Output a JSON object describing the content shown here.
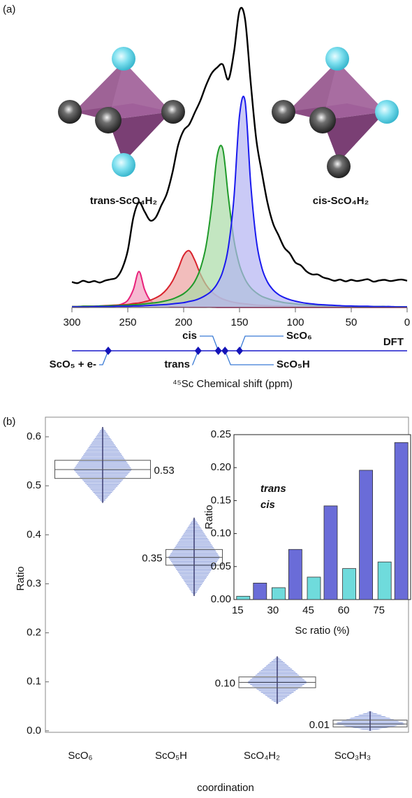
{
  "panel_labels": [
    "(a)",
    "(b)"
  ],
  "chart_data": [
    {
      "type": "line",
      "annotations": [
        "trans-ScO₄H₂",
        "cis-ScO₄H₂"
      ],
      "xlabel": "⁴⁵Sc Chemical shift (ppm)",
      "xlim": [
        300,
        0
      ],
      "xticks": [
        300,
        250,
        200,
        150,
        100,
        50,
        0
      ],
      "x": [
        300,
        295,
        290,
        285,
        280,
        275,
        270,
        265,
        260,
        255,
        250,
        245,
        240,
        235,
        230,
        225,
        220,
        215,
        210,
        205,
        200,
        195,
        190,
        185,
        180,
        175,
        170,
        165,
        160,
        155,
        150,
        145,
        140,
        135,
        130,
        125,
        120,
        115,
        110,
        105,
        100,
        95,
        90,
        85,
        80,
        75,
        70,
        65,
        60,
        55,
        50,
        45,
        40,
        35,
        30,
        25,
        20,
        15,
        10,
        5,
        0
      ],
      "series": [
        {
          "color": "#e8207a",
          "fill": "#f29bbd",
          "values": [
            0.1,
            0.1,
            0.1,
            0.1,
            0.2,
            0.2,
            0.3,
            0.5,
            0.7,
            1.2,
            2.4,
            6,
            12,
            6,
            2.4,
            1.2,
            0.7,
            0.5,
            0.3,
            0.2,
            0.2,
            0.1,
            0.1,
            0.1,
            0.1,
            0.1,
            0,
            0,
            0,
            0,
            0,
            0,
            0,
            0,
            0,
            0,
            0,
            0,
            0,
            0,
            0,
            0,
            0,
            0,
            0,
            0,
            0,
            0,
            0,
            0,
            0,
            0,
            0,
            0,
            0,
            0,
            0,
            0,
            0,
            0,
            0
          ]
        },
        {
          "color": "#d9232d",
          "fill": "#eca1a0",
          "values": [
            0.3,
            0.3,
            0.4,
            0.4,
            0.4,
            0.5,
            0.6,
            0.7,
            0.8,
            0.9,
            1.0,
            1.3,
            1.5,
            1.9,
            2.4,
            3.2,
            4.3,
            6.1,
            8.8,
            12.8,
            17.4,
            18.9,
            15.7,
            11.1,
            7.6,
            5.3,
            3.8,
            2.8,
            2.2,
            1.7,
            1.4,
            1.2,
            1.0,
            0.8,
            0.7,
            0.6,
            0.5,
            0.5,
            0.4,
            0.4,
            0.3,
            0.3,
            0.3,
            0.3,
            0.2,
            0.2,
            0.2,
            0.2,
            0.2,
            0.2,
            0.2,
            0.1,
            0.1,
            0.1,
            0.1,
            0.1,
            0.1,
            0.1,
            0.1,
            0.1,
            0.1
          ]
        },
        {
          "color": "#1f9a2a",
          "fill": "#a9dba6",
          "values": [
            0.3,
            0.3,
            0.4,
            0.4,
            0.4,
            0.5,
            0.5,
            0.6,
            0.6,
            0.7,
            0.8,
            0.9,
            1.0,
            1.2,
            1.4,
            1.6,
            1.9,
            2.3,
            2.8,
            3.6,
            4.6,
            6.2,
            8.7,
            13.0,
            20.4,
            33.5,
            50.5,
            52.9,
            36.9,
            22.5,
            14.1,
            9.4,
            6.6,
            4.9,
            3.7,
            3.0,
            2.4,
            2.0,
            1.6,
            1.4,
            1.2,
            1.0,
            0.9,
            0.8,
            0.7,
            0.6,
            0.6,
            0.5,
            0.5,
            0.4,
            0.4,
            0.4,
            0.3,
            0.3,
            0.3,
            0.3,
            0.3,
            0.2,
            0.2,
            0.2,
            0.2
          ]
        },
        {
          "color": "#1a1aee",
          "fill": "#b3b3f2",
          "values": [
            0.2,
            0.2,
            0.2,
            0.2,
            0.3,
            0.3,
            0.3,
            0.3,
            0.4,
            0.4,
            0.4,
            0.5,
            0.5,
            0.6,
            0.7,
            0.8,
            0.9,
            1.0,
            1.2,
            1.4,
            1.6,
            2.0,
            2.4,
            3.1,
            4.1,
            5.5,
            7.9,
            12.0,
            20.1,
            36.5,
            64,
            68.7,
            41.3,
            22.5,
            13.2,
            8.5,
            5.9,
            4.3,
            3.3,
            2.6,
            2.1,
            1.7,
            1.4,
            1.2,
            1.0,
            0.9,
            0.8,
            0.7,
            0.6,
            0.5,
            0.5,
            0.4,
            0.4,
            0.4,
            0.3,
            0.3,
            0.3,
            0.3,
            0.2,
            0.2,
            0.2
          ]
        },
        {
          "color": "#000000",
          "values": [
            8.5,
            8.1,
            8.9,
            8.4,
            8.8,
            8.3,
            9.0,
            9.4,
            10,
            13,
            19,
            30,
            35,
            32,
            29,
            30,
            34,
            38,
            45,
            54,
            59,
            61,
            65,
            69,
            74,
            78,
            80,
            81,
            76,
            85,
            99,
            96,
            75,
            56,
            45,
            35,
            28,
            24,
            20,
            18,
            15,
            14,
            12,
            11,
            11,
            10,
            9.5,
            8.9,
            9.3,
            8.7,
            9.2,
            8.8,
            9.1,
            9.4,
            8.6,
            9.0,
            9.2,
            8.8,
            9.1,
            9.3,
            8.9
          ]
        }
      ],
      "dft": {
        "label": "DFT",
        "color": "#1a1acc",
        "points": [
          {
            "label": "ScO₅ + e-",
            "value": 267.5
          },
          {
            "label": "trans",
            "value": 187
          },
          {
            "label": "cis",
            "value": 169
          },
          {
            "label": "ScO₅H",
            "value": 163
          },
          {
            "label": "ScO₆",
            "value": 150
          }
        ]
      }
    },
    {
      "type": "box",
      "categories": [
        "ScO₆",
        "ScO₅H",
        "ScO₄H₂",
        "ScO₃H₃"
      ],
      "values": [
        0.533,
        0.354,
        0.099,
        0.014
      ],
      "value_labels": [
        "0.53",
        "0.35",
        "0.10",
        "0.01"
      ],
      "q1": [
        0.515,
        0.338,
        0.088,
        0.008
      ],
      "q3": [
        0.552,
        0.37,
        0.11,
        0.022
      ],
      "min": [
        0.465,
        0.275,
        0.055,
        0.0
      ],
      "max": [
        0.62,
        0.435,
        0.152,
        0.04
      ],
      "color": "#6f86d3",
      "ylim": [
        -0.003,
        0.64
      ],
      "yticks": [
        {
          "value": 0,
          "label": "0.0"
        },
        0.1,
        0.2,
        0.3,
        0.4,
        0.5,
        0.6
      ],
      "ylabel": "Ratio",
      "xlabel": "coordination"
    },
    {
      "type": "bar",
      "categories": [
        "15",
        "30",
        "45",
        "60",
        "75"
      ],
      "series": [
        {
          "name": "trans",
          "color": "#6fdbdc",
          "values": [
            0.005,
            0.018,
            0.034,
            0.047,
            0.057
          ]
        },
        {
          "name": "cis",
          "color": "#6a6cd8",
          "values": [
            0.025,
            0.076,
            0.142,
            0.196,
            0.238
          ]
        }
      ],
      "ylim": [
        0,
        0.25
      ],
      "yticks": [
        {
          "value": 0,
          "label": "0.00"
        },
        {
          "value": 0.05,
          "label": "0.05"
        },
        {
          "value": 0.1,
          "label": "0.10"
        },
        {
          "value": 0.15,
          "label": "0.15"
        },
        {
          "value": 0.2,
          "label": "0.20"
        },
        {
          "value": 0.25,
          "label": "0.25"
        }
      ],
      "xlabel": "Sc ratio (%)",
      "ylabel": "Ratio"
    }
  ]
}
